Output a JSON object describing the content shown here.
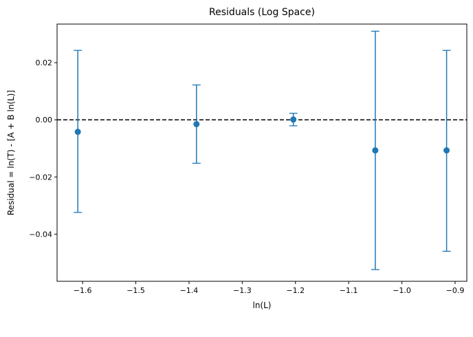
{
  "chart_data": {
    "type": "scatter",
    "title": "Residuals (Log Space)",
    "xlabel": "ln(L)",
    "ylabel": "Residual = ln(T) - [A + B ln(L)]",
    "xlim": [
      -1.648,
      -0.878
    ],
    "ylim": [
      -0.0565,
      0.0335
    ],
    "x_ticks": [
      -1.6,
      -1.5,
      -1.4,
      -1.3,
      -1.2,
      -1.1,
      -1.0,
      -0.9
    ],
    "x_tick_labels": [
      "−1.6",
      "−1.5",
      "−1.4",
      "−1.3",
      "−1.2",
      "−1.1",
      "−1.0",
      "−0.9"
    ],
    "y_ticks": [
      -0.04,
      -0.02,
      0.0,
      0.02
    ],
    "y_tick_labels": [
      "−0.04",
      "−0.02",
      "0.00",
      "0.02"
    ],
    "grid": false,
    "reference_line": {
      "y": 0.0,
      "style": "dashed",
      "color": "#000000"
    },
    "series": [
      {
        "color": "#1f77b4",
        "marker": "circle",
        "points": [
          {
            "x": -1.609,
            "y": -0.0042,
            "err_low": -0.0324,
            "err_high": 0.0243
          },
          {
            "x": -1.386,
            "y": -0.0015,
            "err_low": -0.0152,
            "err_high": 0.0122
          },
          {
            "x": -1.204,
            "y": 0.0001,
            "err_low": -0.0021,
            "err_high": 0.0023
          },
          {
            "x": -1.05,
            "y": -0.0107,
            "err_low": -0.0524,
            "err_high": 0.031
          },
          {
            "x": -0.916,
            "y": -0.0107,
            "err_low": -0.046,
            "err_high": 0.0243
          }
        ]
      }
    ]
  }
}
